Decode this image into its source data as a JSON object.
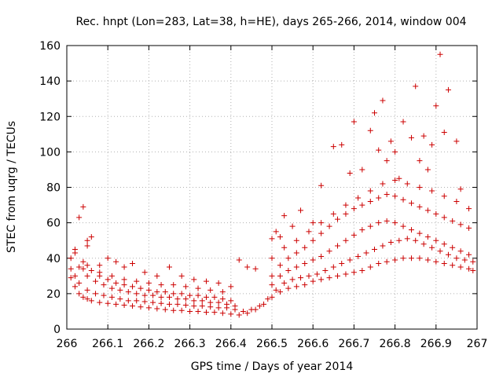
{
  "chart_data": {
    "type": "scatter",
    "title": "Rec. hnpt (Lon=283, Lat=38, h=HE), days 265-266, 2014, window 004",
    "xlabel": "GPS time / Days of year 2014",
    "ylabel": "STEC from uqrg / TECUs",
    "xlim": [
      266,
      267
    ],
    "ylim": [
      0,
      160
    ],
    "x_ticks": [
      "266",
      "266.1",
      "266.2",
      "266.3",
      "266.4",
      "266.5",
      "266.6",
      "266.7",
      "266.8",
      "266.9",
      "267"
    ],
    "y_ticks": [
      "0",
      "20",
      "40",
      "60",
      "80",
      "100",
      "120",
      "140",
      "160"
    ],
    "grid": true,
    "marker": "+",
    "color": "#cc0000",
    "tracks": [
      {
        "x": [
          266.01,
          266.02,
          266.03,
          266.04,
          266.05,
          266.06,
          266.08,
          266.1,
          266.12,
          266.14,
          266.16,
          266.18,
          266.2,
          266.22,
          266.24,
          266.26,
          266.28,
          266.3,
          266.32,
          266.34,
          266.36,
          266.38,
          266.4,
          266.42,
          266.44,
          266.46,
          266.48,
          266.5,
          266.52,
          266.54,
          266.56,
          266.58,
          266.6,
          266.62,
          266.64,
          266.66,
          266.68,
          266.7,
          266.72,
          266.74,
          266.76,
          266.78,
          266.8,
          266.82,
          266.84,
          266.86,
          266.88,
          266.9,
          266.92,
          266.94,
          266.96,
          266.98,
          266.99
        ],
        "y": [
          29,
          24,
          20,
          18,
          17,
          16,
          15,
          14.5,
          14,
          13.5,
          13,
          12.5,
          12,
          11.5,
          11,
          10.5,
          10.5,
          10,
          10,
          9.5,
          9.5,
          9,
          8.5,
          8,
          9,
          11,
          14,
          18,
          21,
          23,
          24,
          25,
          27,
          28,
          29,
          30,
          31,
          32,
          33,
          35,
          37,
          38,
          39,
          40,
          40,
          40,
          39,
          38,
          37,
          36,
          35,
          34,
          33
        ]
      },
      {
        "x": [
          266.01,
          266.02,
          266.03,
          266.05,
          266.07,
          266.09,
          266.11,
          266.13,
          266.15,
          266.17,
          266.19,
          266.21,
          266.23,
          266.25,
          266.27,
          266.29,
          266.31,
          266.33,
          266.35,
          266.37,
          266.39,
          266.41,
          266.43,
          266.45,
          266.47,
          266.49,
          266.51,
          266.53,
          266.55,
          266.57,
          266.59,
          266.61,
          266.63,
          266.65,
          266.67,
          266.69,
          266.71,
          266.73,
          266.75,
          266.77,
          266.79,
          266.81,
          266.83,
          266.85,
          266.87,
          266.89,
          266.91,
          266.93,
          266.95,
          266.97,
          266.99
        ],
        "y": [
          34,
          30,
          26,
          22,
          20,
          19,
          18,
          17,
          16,
          16,
          15.5,
          15,
          14.5,
          14,
          14,
          13.5,
          13,
          13,
          12.5,
          12,
          12,
          11,
          10,
          11,
          13,
          17,
          22,
          26,
          28,
          29,
          30,
          31,
          33,
          35,
          37,
          39,
          41,
          43,
          45,
          47,
          49,
          50,
          51,
          50,
          48,
          46,
          44,
          42,
          40,
          39,
          38
        ]
      },
      {
        "x": [
          266.01,
          266.03,
          266.05,
          266.07,
          266.09,
          266.11,
          266.13,
          266.15,
          266.17,
          266.19,
          266.21,
          266.23,
          266.25,
          266.27,
          266.29,
          266.31,
          266.33,
          266.35,
          266.37,
          266.39,
          266.41,
          266.5,
          266.52,
          266.54,
          266.56,
          266.58,
          266.6,
          266.62,
          266.64,
          266.66,
          266.68,
          266.7,
          266.72,
          266.74,
          266.76,
          266.78,
          266.8,
          266.82,
          266.84,
          266.86,
          266.88,
          266.9,
          266.92,
          266.94,
          266.96,
          266.98
        ],
        "y": [
          40,
          35,
          30,
          27,
          25,
          23,
          22,
          21,
          20,
          19,
          19,
          18,
          18,
          17,
          17,
          16,
          16,
          15,
          15,
          14,
          13,
          25,
          30,
          33,
          35,
          37,
          39,
          41,
          44,
          47,
          50,
          53,
          56,
          58,
          60,
          61,
          60,
          58,
          56,
          54,
          52,
          50,
          48,
          46,
          44,
          42
        ]
      },
      {
        "x": [
          266.02,
          266.04,
          266.06,
          266.08,
          266.1,
          266.12,
          266.14,
          266.16,
          266.18,
          266.2,
          266.22,
          266.24,
          266.26,
          266.28,
          266.3,
          266.32,
          266.34,
          266.36,
          266.38,
          266.4,
          266.5,
          266.52,
          266.54,
          266.56,
          266.58,
          266.6,
          266.62,
          266.64,
          266.66,
          266.68,
          266.7,
          266.72,
          266.74,
          266.76,
          266.78,
          266.8,
          266.82,
          266.84,
          266.86,
          266.88,
          266.9,
          266.92,
          266.94,
          266.96,
          266.98
        ],
        "y": [
          45,
          38,
          33,
          30,
          28,
          26,
          25,
          24,
          23,
          22,
          21,
          21,
          20,
          20,
          19,
          19,
          18,
          18,
          17,
          16,
          30,
          36,
          40,
          43,
          46,
          50,
          54,
          58,
          62,
          65,
          68,
          70,
          72,
          74,
          76,
          75,
          73,
          71,
          69,
          67,
          65,
          63,
          61,
          59,
          57
        ]
      },
      {
        "x": [
          266.02,
          266.05,
          266.08,
          266.11,
          266.14,
          266.17,
          266.2,
          266.23,
          266.26,
          266.29,
          266.32,
          266.35,
          266.38,
          266.5,
          266.53,
          266.56,
          266.59,
          266.62,
          266.65,
          266.68,
          266.71,
          266.74,
          266.77,
          266.8,
          266.83,
          266.86,
          266.89,
          266.92,
          266.95,
          266.98
        ],
        "y": [
          43,
          36,
          32,
          30,
          28,
          27,
          26,
          25,
          25,
          24,
          23,
          22,
          21,
          40,
          46,
          50,
          55,
          60,
          65,
          70,
          74,
          78,
          82,
          84,
          82,
          80,
          78,
          75,
          72,
          68
        ]
      },
      {
        "x": [
          266.03,
          266.04,
          266.05,
          266.06,
          266.05,
          266.04,
          266.08,
          266.1,
          266.12,
          266.14,
          266.16,
          266.19,
          266.22,
          266.25,
          266.28,
          266.31,
          266.34,
          266.37,
          266.4,
          266.42,
          266.44,
          266.46
        ],
        "y": [
          63,
          69,
          50,
          52,
          47,
          34,
          36,
          40,
          38,
          35,
          37,
          32,
          30,
          35,
          30,
          28,
          27,
          26,
          24,
          39,
          35,
          34
        ]
      },
      {
        "x": [
          266.5,
          266.51,
          266.52,
          266.53,
          266.55,
          266.57,
          266.6,
          266.62,
          266.65,
          266.67,
          266.69,
          266.7,
          266.72,
          266.74,
          266.75,
          266.76,
          266.77,
          266.78,
          266.79,
          266.8,
          266.81,
          266.82,
          266.84,
          266.85,
          266.86,
          266.87,
          266.88,
          266.89,
          266.9,
          266.91,
          266.92,
          266.93,
          266.95,
          266.96
        ],
        "y": [
          51,
          55,
          52,
          64,
          58,
          67,
          60,
          81,
          103,
          104,
          88,
          117,
          90,
          112,
          122,
          101,
          129,
          95,
          106,
          100,
          85,
          117,
          108,
          137,
          95,
          109,
          90,
          104,
          126,
          155,
          111,
          135,
          106,
          79
        ]
      }
    ]
  }
}
